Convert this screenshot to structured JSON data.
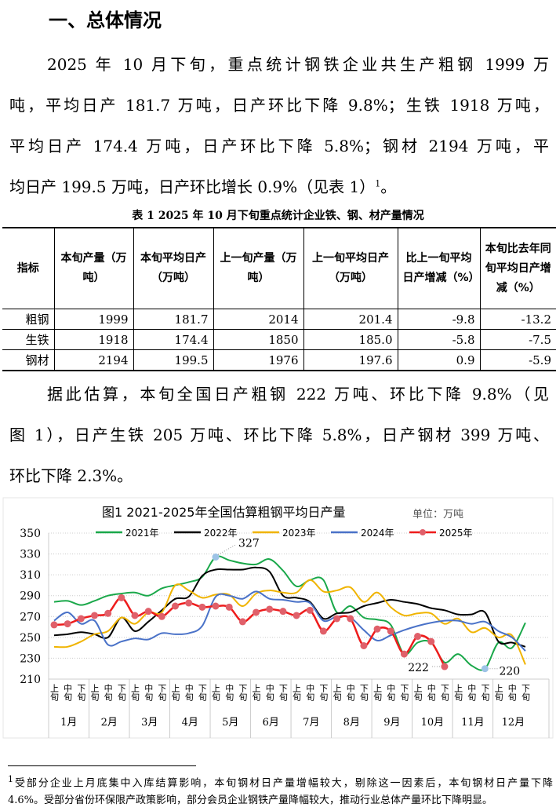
{
  "heading": "一、总体情况",
  "para1_lines": [
    "2025 年 10 月下旬，重点统计钢铁企业共生产粗钢 1999 万",
    "吨，平均日产 181.7 万吨，日产环比下降 9.8%；生铁 1918 万吨，",
    "平均日产 174.4 万吨，日产环比下降 5.8%；钢材 2194 万吨，平",
    "均日产 199.5 万吨，日产环比增长 0.9%（见表 1）"
  ],
  "para1_footnote_ref": "1",
  "para1_end": "。",
  "table": {
    "caption": "表 1   2025 年 10 月下旬重点统计企业铁、钢、材产量情况",
    "headers": [
      "指标",
      "本旬产量（万吨）",
      "本旬平均日产（万吨）",
      "上一旬产量（万吨）",
      "上一旬平均日产（万吨）",
      "比上一旬平均日产增减（%）",
      "本旬比去年同旬平均日产增减（%）"
    ],
    "rows": [
      [
        "粗钢",
        "1999",
        "181.7",
        "2014",
        "201.4",
        "-9.8",
        "-13.2"
      ],
      [
        "生铁",
        "1918",
        "174.4",
        "1850",
        "185.0",
        "-5.8",
        "-7.5"
      ],
      [
        "钢材",
        "2194",
        "199.5",
        "1976",
        "197.6",
        "0.9",
        "-5.9"
      ]
    ]
  },
  "para2_lines": [
    "据此估算，本旬全国日产粗钢 222 万吨、环比下降 9.8%（见",
    "图 1），日产生铁 205 万吨、环比下降 5.8%，日产钢材 399 万吨、",
    "环比下降 2.3%。"
  ],
  "chart_data": {
    "type": "line",
    "title": "图1  2021-2025年全国估算粗钢平均日产量",
    "unit_label": "单位：万吨",
    "ylim": [
      210,
      350
    ],
    "yticks": [
      210,
      230,
      250,
      270,
      290,
      310,
      330,
      350
    ],
    "grid": "horizontal dotted",
    "legend": "top",
    "months": [
      "1月",
      "2月",
      "3月",
      "4月",
      "5月",
      "6月",
      "7月",
      "8月",
      "9月",
      "10月",
      "11月",
      "12月"
    ],
    "dekads": [
      "上旬",
      "中旬",
      "下旬"
    ],
    "series": [
      {
        "name": "2021年",
        "color": "#1aa84a",
        "values": [
          284,
          285,
          281,
          285,
          290,
          292,
          293,
          290,
          297,
          300,
          303,
          308,
          327,
          324,
          321,
          320,
          325,
          314,
          299,
          305,
          305,
          274,
          280,
          269,
          267,
          262,
          234,
          245,
          245,
          226,
          234,
          223,
          220,
          245,
          240,
          264
        ]
      },
      {
        "name": "2022年",
        "color": "#000000",
        "values": [
          252,
          253,
          255,
          253,
          250,
          269,
          256,
          265,
          276,
          287,
          289,
          309,
          315,
          315,
          315,
          317,
          313,
          290,
          288,
          284,
          268,
          273,
          274,
          280,
          283,
          286,
          284,
          282,
          278,
          276,
          272,
          272,
          274,
          246,
          245,
          241
        ]
      },
      {
        "name": "2023年",
        "color": "#f0b400",
        "values": [
          241,
          241,
          246,
          253,
          256,
          269,
          263,
          274,
          274,
          300,
          295,
          288,
          291,
          291,
          280,
          292,
          295,
          293,
          293,
          305,
          294,
          295,
          298,
          284,
          293,
          279,
          271,
          273,
          273,
          263,
          268,
          255,
          259,
          250,
          252,
          224
        ]
      },
      {
        "name": "2024年",
        "color": "#4a72c8",
        "values": [
          266,
          274,
          263,
          266,
          243,
          246,
          249,
          248,
          254,
          253,
          254,
          261,
          289,
          290,
          287,
          294,
          287,
          286,
          284,
          283,
          266,
          270,
          269,
          257,
          247,
          252,
          257,
          261,
          264,
          266,
          266,
          263,
          265,
          256,
          250,
          237
        ]
      },
      {
        "name": "2025年",
        "color": "#ee1c1c",
        "marker_color": "#e0606a",
        "values": [
          262,
          263,
          268,
          271,
          273,
          288,
          271,
          275,
          270,
          280,
          283,
          279,
          280,
          279,
          265,
          274,
          277,
          275,
          271,
          276,
          256,
          268,
          268,
          242,
          258,
          256,
          234,
          251,
          246,
          222
        ]
      }
    ],
    "annotations": [
      {
        "series": "2021年",
        "label": "327"
      },
      {
        "series": "2025年",
        "label": "222"
      },
      {
        "series": "2021年",
        "label": "220"
      }
    ]
  },
  "footnote_lines": [
    "受部分企业上月底集中入库结算影响，本旬钢材日产量增幅较大，剔除这一因素后，本旬钢材日产量下降",
    "4.6%。受部分省份环保限产政策影响，部分会员企业钢铁产量降幅较大，推动行业总体产量环比下降明显。"
  ],
  "footnote_mark": "1"
}
